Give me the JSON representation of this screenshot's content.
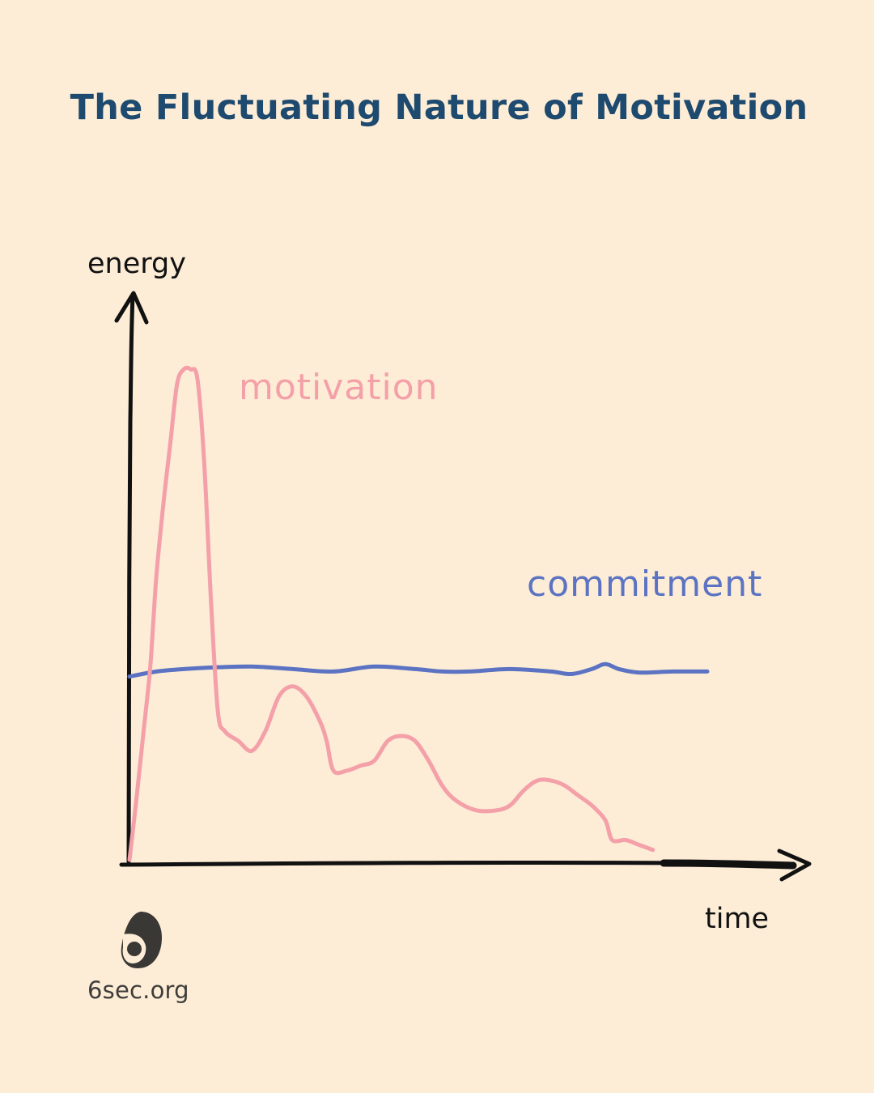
{
  "title": "The Fluctuating Nature of Motivation",
  "chart_data": {
    "type": "line",
    "xlabel": "time",
    "ylabel": "energy",
    "xlim": [
      0,
      100
    ],
    "ylim": [
      0,
      100
    ],
    "grid": false,
    "series": [
      {
        "name": "motivation",
        "color": "#f4a0a8",
        "points": [
          [
            0,
            0
          ],
          [
            1,
            12
          ],
          [
            2,
            25
          ],
          [
            3,
            38
          ],
          [
            3.5,
            48
          ],
          [
            4,
            58
          ],
          [
            5,
            72
          ],
          [
            6,
            84
          ],
          [
            7,
            96
          ],
          [
            8,
            99
          ],
          [
            9,
            99
          ],
          [
            10,
            97
          ],
          [
            11,
            80
          ],
          [
            12,
            52
          ],
          [
            13,
            30
          ],
          [
            14,
            26
          ],
          [
            16,
            24
          ],
          [
            18,
            22
          ],
          [
            20,
            26
          ],
          [
            22,
            33
          ],
          [
            24,
            35
          ],
          [
            26,
            33
          ],
          [
            28,
            28
          ],
          [
            29,
            24
          ],
          [
            30,
            18
          ],
          [
            32,
            18
          ],
          [
            34,
            19
          ],
          [
            36,
            20
          ],
          [
            38,
            24
          ],
          [
            40,
            25
          ],
          [
            42,
            24
          ],
          [
            44,
            20
          ],
          [
            46,
            15
          ],
          [
            48,
            12
          ],
          [
            51,
            10
          ],
          [
            54,
            10
          ],
          [
            56,
            11
          ],
          [
            58,
            14
          ],
          [
            60,
            16
          ],
          [
            62,
            16
          ],
          [
            64,
            15
          ],
          [
            66,
            13
          ],
          [
            68,
            11
          ],
          [
            70,
            8
          ],
          [
            71,
            4
          ],
          [
            73,
            4
          ],
          [
            75,
            3
          ],
          [
            77,
            2
          ]
        ]
      },
      {
        "name": "commitment",
        "color": "#5b73c2",
        "points": [
          [
            0,
            37
          ],
          [
            4,
            38
          ],
          [
            8,
            38.5
          ],
          [
            12,
            38.8
          ],
          [
            18,
            39
          ],
          [
            24,
            38.5
          ],
          [
            30,
            38
          ],
          [
            36,
            39
          ],
          [
            42,
            38.5
          ],
          [
            46,
            38
          ],
          [
            50,
            38
          ],
          [
            56,
            38.5
          ],
          [
            62,
            38
          ],
          [
            65,
            37.5
          ],
          [
            68,
            38.5
          ],
          [
            70,
            39.5
          ],
          [
            72,
            38.5
          ],
          [
            75,
            37.8
          ],
          [
            80,
            38
          ],
          [
            85,
            38
          ]
        ]
      }
    ]
  },
  "footer": {
    "site": "6sec.org"
  }
}
